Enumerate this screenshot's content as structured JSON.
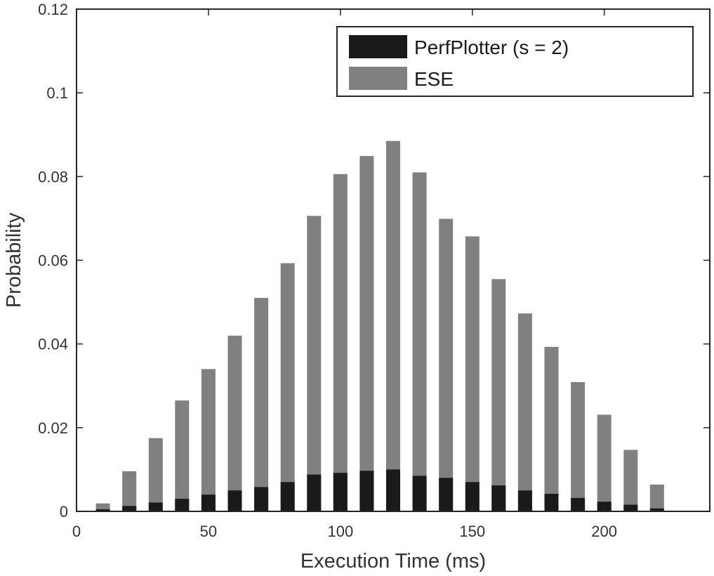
{
  "chart_data": {
    "type": "bar",
    "title": "",
    "xlabel": "Execution Time (ms)",
    "ylabel": "Probability",
    "xlim": [
      0,
      240
    ],
    "ylim": [
      0,
      0.12
    ],
    "x": [
      10,
      20,
      30,
      40,
      50,
      60,
      70,
      80,
      90,
      100,
      110,
      120,
      130,
      140,
      150,
      160,
      170,
      180,
      190,
      200,
      210,
      220
    ],
    "xticks": [
      0,
      50,
      100,
      150,
      200
    ],
    "xtick_labels": [
      "0",
      "50",
      "100",
      "150",
      "200"
    ],
    "yticks": [
      0,
      0.02,
      0.04,
      0.06,
      0.08,
      0.1,
      0.12
    ],
    "ytick_labels": [
      "0",
      "0.02",
      "0.04",
      "0.06",
      "0.08",
      "0.1",
      "0.12"
    ],
    "grid": false,
    "legend_position": "top-right",
    "overlay": true,
    "series": [
      {
        "name": "PerfPlotter (s = 2)",
        "color": "#1a1a1a",
        "values": [
          0.0005,
          0.0013,
          0.0021,
          0.003,
          0.004,
          0.005,
          0.0058,
          0.007,
          0.0088,
          0.0092,
          0.0097,
          0.01,
          0.0085,
          0.008,
          0.007,
          0.0062,
          0.005,
          0.0042,
          0.0032,
          0.0023,
          0.0016,
          0.0007
        ]
      },
      {
        "name": "ESE",
        "color": "#808080",
        "values": [
          0.0019,
          0.0096,
          0.0175,
          0.0265,
          0.034,
          0.042,
          0.051,
          0.0593,
          0.0706,
          0.0806,
          0.0849,
          0.0885,
          0.081,
          0.0699,
          0.0657,
          0.0555,
          0.0473,
          0.0393,
          0.0309,
          0.0231,
          0.0147,
          0.0064
        ]
      }
    ]
  }
}
